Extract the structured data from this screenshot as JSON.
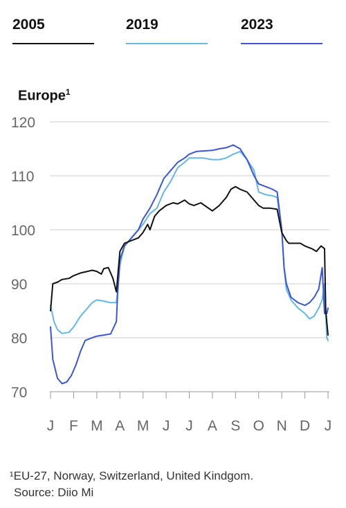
{
  "legend": [
    {
      "label": "2005",
      "color": "#111111"
    },
    {
      "label": "2019",
      "color": "#62b6e8"
    },
    {
      "label": "2023",
      "color": "#3a56d8"
    }
  ],
  "subtitle": "Europe",
  "subtitle_marker": "1",
  "footnote": {
    "note": "¹EU-27, Norway, Switzerland, United Kindgom.",
    "source": "Source: Diio Mi"
  },
  "chart_data": {
    "type": "line",
    "title": "",
    "subtitle": "Europe¹",
    "xlabel": "",
    "ylabel": "",
    "ylim": [
      70,
      120
    ],
    "yticks": [
      70,
      80,
      90,
      100,
      110,
      120
    ],
    "xlim": [
      0,
      12
    ],
    "xticks": [
      "J",
      "F",
      "M",
      "A",
      "M",
      "J",
      "J",
      "A",
      "S",
      "O",
      "N",
      "D",
      "J"
    ],
    "grid": "horizontal",
    "legend": "top",
    "series": [
      {
        "name": "2005",
        "color": "#111111",
        "x": [
          0,
          0.1,
          0.3,
          0.5,
          0.8,
          1.0,
          1.3,
          1.6,
          1.8,
          2.0,
          2.2,
          2.3,
          2.5,
          2.7,
          2.85,
          3.0,
          3.2,
          3.5,
          3.8,
          4.0,
          4.2,
          4.3,
          4.5,
          4.7,
          5.0,
          5.3,
          5.5,
          5.8,
          6.0,
          6.2,
          6.5,
          7.0,
          7.3,
          7.6,
          7.8,
          8.0,
          8.2,
          8.5,
          8.8,
          9.0,
          9.2,
          9.5,
          9.8,
          10.0,
          10.2,
          10.3,
          10.5,
          10.8,
          11.0,
          11.3,
          11.5,
          11.7,
          11.85,
          11.9,
          12.0
        ],
        "values": [
          85,
          90,
          90.3,
          90.8,
          91,
          91.5,
          92,
          92.3,
          92.5,
          92.3,
          91.8,
          92.8,
          93,
          91,
          88.5,
          96,
          97.5,
          98,
          98.5,
          99.5,
          101,
          100,
          102.5,
          103.5,
          104.5,
          105,
          104.8,
          105.5,
          104.8,
          104.5,
          105,
          103.5,
          104.5,
          106,
          107.5,
          108,
          107.5,
          107,
          105.5,
          104.5,
          104,
          104,
          103.8,
          99.5,
          98,
          97.5,
          97.5,
          97.5,
          97,
          96.5,
          96,
          97,
          96.5,
          85,
          80.5
        ]
      },
      {
        "name": "2019",
        "color": "#62b6e8",
        "x": [
          0,
          0.15,
          0.3,
          0.5,
          0.8,
          1.0,
          1.3,
          1.6,
          1.8,
          2.0,
          2.3,
          2.6,
          2.85,
          2.9,
          3.0,
          3.2,
          3.5,
          3.8,
          4.0,
          4.3,
          4.6,
          4.9,
          5.2,
          5.5,
          5.8,
          6.0,
          6.3,
          6.6,
          7.0,
          7.3,
          7.6,
          7.9,
          8.2,
          8.5,
          8.8,
          9.0,
          9.3,
          9.6,
          9.8,
          10.0,
          10.1,
          10.2,
          10.4,
          10.7,
          11.0,
          11.2,
          11.4,
          11.6,
          11.75,
          11.85,
          11.95,
          12.0
        ],
        "values": [
          86,
          83,
          81.5,
          80.8,
          81,
          82,
          84,
          85.5,
          86.5,
          87,
          86.8,
          86.5,
          86.5,
          88.5,
          93.5,
          97,
          98.5,
          100,
          101,
          103,
          104,
          107,
          109,
          111.5,
          112.5,
          113.3,
          113.3,
          113.3,
          113,
          113,
          113.3,
          114,
          114.5,
          113,
          111,
          107,
          106.5,
          106.3,
          106,
          100,
          93,
          89,
          87,
          85.5,
          84.5,
          83.5,
          84,
          85.5,
          87,
          90,
          80,
          79.5
        ]
      },
      {
        "name": "2023",
        "color": "#3a56d8",
        "x": [
          0,
          0.1,
          0.3,
          0.5,
          0.7,
          0.9,
          1.1,
          1.3,
          1.5,
          1.8,
          2.0,
          2.3,
          2.6,
          2.85,
          2.9,
          3.0,
          3.2,
          3.5,
          3.8,
          4.0,
          4.3,
          4.6,
          4.9,
          5.2,
          5.5,
          5.8,
          6.0,
          6.3,
          6.6,
          7.0,
          7.3,
          7.6,
          7.9,
          8.2,
          8.5,
          8.8,
          9.0,
          9.3,
          9.6,
          9.8,
          10.0,
          10.1,
          10.2,
          10.4,
          10.7,
          11.0,
          11.2,
          11.4,
          11.6,
          11.75,
          11.85,
          11.95,
          12.0
        ],
        "values": [
          82,
          76,
          72.5,
          71.5,
          71.8,
          73,
          75,
          77.5,
          79.5,
          80,
          80.3,
          80.5,
          80.7,
          83,
          88,
          94.5,
          97,
          98.5,
          100,
          102,
          104,
          106.5,
          109.5,
          111,
          112.5,
          113.3,
          114,
          114.5,
          114.6,
          114.7,
          115,
          115.2,
          115.7,
          115,
          113,
          110,
          108.5,
          108,
          107.5,
          107,
          100,
          93,
          90,
          87.5,
          86.5,
          86,
          86.5,
          87.5,
          89,
          93,
          84.5,
          84.5,
          85.5
        ]
      }
    ]
  }
}
